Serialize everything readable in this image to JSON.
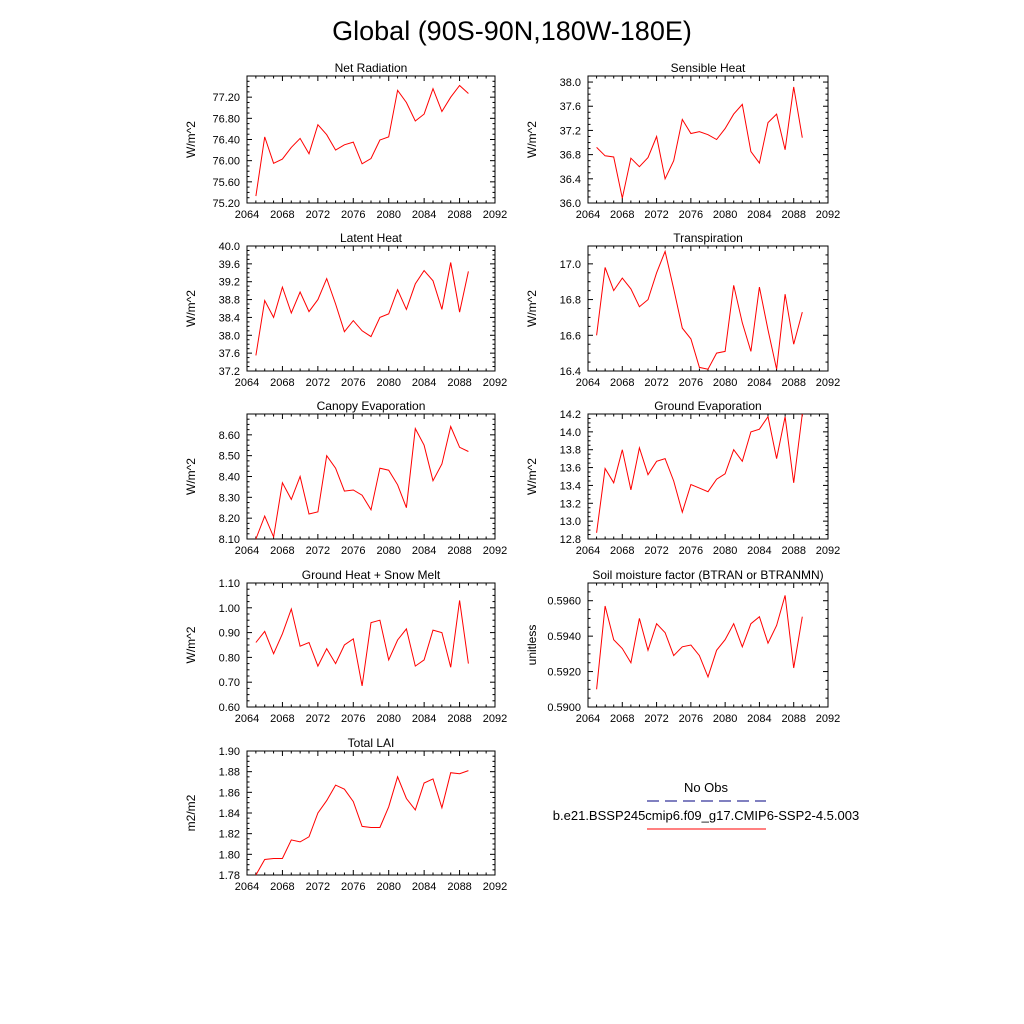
{
  "figure": {
    "title": "Global (90S-90N,180W-180E)",
    "colors": {
      "model_line": "#ff0000",
      "obs_line": "#000080",
      "axes": "#000000"
    }
  },
  "legend": {
    "obs_label": "No Obs",
    "model_label": "b.e21.BSSP245cmip6.f09_g17.CMIP6-SSP2-4.5.003",
    "obs_style": "dashed",
    "model_style": "solid"
  },
  "chart_data": [
    {
      "type": "line",
      "title": "Net Radiation",
      "ylabel": "W/m^2",
      "xlabel": "",
      "xlim": [
        2064,
        2092
      ],
      "ylim": [
        75.2,
        77.6
      ],
      "xticks": [
        "2064",
        "2068",
        "2072",
        "2076",
        "2080",
        "2084",
        "2088",
        "2092"
      ],
      "yticks": [
        "75.20",
        "75.60",
        "76.00",
        "76.40",
        "76.80",
        "77.20"
      ],
      "x": [
        2065,
        2066,
        2067,
        2068,
        2069,
        2070,
        2071,
        2072,
        2073,
        2074,
        2075,
        2076,
        2077,
        2078,
        2079,
        2080,
        2081,
        2082,
        2083,
        2084,
        2085,
        2086,
        2087,
        2088,
        2089
      ],
      "series": [
        {
          "name": "b.e21.BSSP245cmip6.f09_g17.CMIP6-SSP2-4.5.003",
          "values": [
            75.33,
            76.45,
            75.95,
            76.03,
            76.25,
            76.42,
            76.13,
            76.68,
            76.49,
            76.2,
            76.3,
            76.35,
            75.94,
            76.04,
            76.39,
            76.45,
            77.33,
            77.1,
            76.75,
            76.88,
            77.36,
            76.93,
            77.2,
            77.42,
            77.27
          ]
        }
      ]
    },
    {
      "type": "line",
      "title": "Sensible Heat",
      "ylabel": "W/m^2",
      "xlabel": "",
      "xlim": [
        2064,
        2092
      ],
      "ylim": [
        36.0,
        38.1
      ],
      "xticks": [
        "2064",
        "2068",
        "2072",
        "2076",
        "2080",
        "2084",
        "2088",
        "2092"
      ],
      "yticks": [
        "36.0",
        "36.4",
        "36.8",
        "37.2",
        "37.6",
        "38.0"
      ],
      "x": [
        2065,
        2066,
        2067,
        2068,
        2069,
        2070,
        2071,
        2072,
        2073,
        2074,
        2075,
        2076,
        2077,
        2078,
        2079,
        2080,
        2081,
        2082,
        2083,
        2084,
        2085,
        2086,
        2087,
        2088,
        2089
      ],
      "series": [
        {
          "name": "b.e21.BSSP245cmip6.f09_g17.CMIP6-SSP2-4.5.003",
          "values": [
            36.92,
            36.78,
            36.76,
            36.08,
            36.74,
            36.6,
            36.75,
            37.1,
            36.4,
            36.7,
            37.38,
            37.15,
            37.18,
            37.13,
            37.05,
            37.23,
            37.47,
            37.63,
            36.85,
            36.66,
            37.33,
            37.47,
            36.88,
            37.92,
            37.08
          ]
        }
      ]
    },
    {
      "type": "line",
      "title": "Latent Heat",
      "ylabel": "W/m^2",
      "xlabel": "",
      "xlim": [
        2064,
        2092
      ],
      "ylim": [
        37.2,
        40.0
      ],
      "xticks": [
        "2064",
        "2068",
        "2072",
        "2076",
        "2080",
        "2084",
        "2088",
        "2092"
      ],
      "yticks": [
        "37.2",
        "37.6",
        "38.0",
        "38.4",
        "38.8",
        "39.2",
        "39.6",
        "40.0"
      ],
      "x": [
        2065,
        2066,
        2067,
        2068,
        2069,
        2070,
        2071,
        2072,
        2073,
        2074,
        2075,
        2076,
        2077,
        2078,
        2079,
        2080,
        2081,
        2082,
        2083,
        2084,
        2085,
        2086,
        2087,
        2088,
        2089
      ],
      "series": [
        {
          "name": "b.e21.BSSP245cmip6.f09_g17.CMIP6-SSP2-4.5.003",
          "values": [
            37.55,
            38.78,
            38.4,
            39.08,
            38.5,
            38.97,
            38.53,
            38.8,
            39.27,
            38.7,
            38.08,
            38.33,
            38.1,
            37.97,
            38.4,
            38.48,
            39.02,
            38.58,
            39.15,
            39.45,
            39.22,
            38.58,
            39.63,
            38.52,
            39.43
          ]
        }
      ]
    },
    {
      "type": "line",
      "title": "Transpiration",
      "ylabel": "W/m^2",
      "xlabel": "",
      "xlim": [
        2064,
        2092
      ],
      "ylim": [
        16.4,
        17.1
      ],
      "xticks": [
        "2064",
        "2068",
        "2072",
        "2076",
        "2080",
        "2084",
        "2088",
        "2092"
      ],
      "yticks": [
        "16.4",
        "16.6",
        "16.8",
        "17.0"
      ],
      "x": [
        2065,
        2066,
        2067,
        2068,
        2069,
        2070,
        2071,
        2072,
        2073,
        2074,
        2075,
        2076,
        2077,
        2078,
        2079,
        2080,
        2081,
        2082,
        2083,
        2084,
        2085,
        2086,
        2087,
        2088,
        2089
      ],
      "series": [
        {
          "name": "b.e21.BSSP245cmip6.f09_g17.CMIP6-SSP2-4.5.003",
          "values": [
            16.6,
            16.98,
            16.85,
            16.92,
            16.86,
            16.76,
            16.8,
            16.95,
            17.07,
            16.86,
            16.64,
            16.58,
            16.42,
            16.41,
            16.5,
            16.51,
            16.88,
            16.67,
            16.51,
            16.87,
            16.63,
            16.41,
            16.83,
            16.55,
            16.73
          ]
        }
      ]
    },
    {
      "type": "line",
      "title": "Canopy Evaporation",
      "ylabel": "W/m^2",
      "xlabel": "",
      "xlim": [
        2064,
        2092
      ],
      "ylim": [
        8.1,
        8.7
      ],
      "xticks": [
        "2064",
        "2068",
        "2072",
        "2076",
        "2080",
        "2084",
        "2088",
        "2092"
      ],
      "yticks": [
        "8.10",
        "8.20",
        "8.30",
        "8.40",
        "8.50",
        "8.60"
      ],
      "x": [
        2065,
        2066,
        2067,
        2068,
        2069,
        2070,
        2071,
        2072,
        2073,
        2074,
        2075,
        2076,
        2077,
        2078,
        2079,
        2080,
        2081,
        2082,
        2083,
        2084,
        2085,
        2086,
        2087,
        2088,
        2089
      ],
      "series": [
        {
          "name": "b.e21.BSSP245cmip6.f09_g17.CMIP6-SSP2-4.5.003",
          "values": [
            8.1,
            8.21,
            8.11,
            8.37,
            8.29,
            8.4,
            8.22,
            8.23,
            8.5,
            8.44,
            8.33,
            8.335,
            8.31,
            8.24,
            8.44,
            8.43,
            8.36,
            8.25,
            8.63,
            8.55,
            8.38,
            8.46,
            8.64,
            8.54,
            8.52
          ]
        }
      ]
    },
    {
      "type": "line",
      "title": "Ground Evaporation",
      "ylabel": "W/m^2",
      "xlabel": "",
      "xlim": [
        2064,
        2092
      ],
      "ylim": [
        12.8,
        14.2
      ],
      "xticks": [
        "2064",
        "2068",
        "2072",
        "2076",
        "2080",
        "2084",
        "2088",
        "2092"
      ],
      "yticks": [
        "12.8",
        "13.0",
        "13.2",
        "13.4",
        "13.6",
        "13.8",
        "14.0",
        "14.2"
      ],
      "x": [
        2065,
        2066,
        2067,
        2068,
        2069,
        2070,
        2071,
        2072,
        2073,
        2074,
        2075,
        2076,
        2077,
        2078,
        2079,
        2080,
        2081,
        2082,
        2083,
        2084,
        2085,
        2086,
        2087,
        2088,
        2089
      ],
      "series": [
        {
          "name": "b.e21.BSSP245cmip6.f09_g17.CMIP6-SSP2-4.5.003",
          "values": [
            12.87,
            13.59,
            13.43,
            13.8,
            13.35,
            13.82,
            13.52,
            13.67,
            13.7,
            13.45,
            13.1,
            13.41,
            13.37,
            13.33,
            13.47,
            13.53,
            13.8,
            13.67,
            14.0,
            14.03,
            14.17,
            13.7,
            14.17,
            13.43,
            14.2
          ]
        }
      ]
    },
    {
      "type": "line",
      "title": "Ground Heat + Snow Melt",
      "ylabel": "W/m^2",
      "xlabel": "",
      "xlim": [
        2064,
        2092
      ],
      "ylim": [
        0.6,
        1.1
      ],
      "xticks": [
        "2064",
        "2068",
        "2072",
        "2076",
        "2080",
        "2084",
        "2088",
        "2092"
      ],
      "yticks": [
        "0.60",
        "0.70",
        "0.80",
        "0.90",
        "1.00",
        "1.10"
      ],
      "x": [
        2065,
        2066,
        2067,
        2068,
        2069,
        2070,
        2071,
        2072,
        2073,
        2074,
        2075,
        2076,
        2077,
        2078,
        2079,
        2080,
        2081,
        2082,
        2083,
        2084,
        2085,
        2086,
        2087,
        2088,
        2089
      ],
      "series": [
        {
          "name": "b.e21.BSSP245cmip6.f09_g17.CMIP6-SSP2-4.5.003",
          "values": [
            0.86,
            0.905,
            0.815,
            0.895,
            0.995,
            0.845,
            0.86,
            0.765,
            0.835,
            0.775,
            0.85,
            0.875,
            0.685,
            0.94,
            0.95,
            0.79,
            0.87,
            0.915,
            0.765,
            0.79,
            0.91,
            0.9,
            0.76,
            1.03,
            0.775
          ]
        }
      ]
    },
    {
      "type": "line",
      "title": "Soil moisture factor (BTRAN or BTRANMN)",
      "ylabel": "unitless",
      "xlabel": "",
      "xlim": [
        2064,
        2092
      ],
      "ylim": [
        0.59,
        0.597
      ],
      "xticks": [
        "2064",
        "2068",
        "2072",
        "2076",
        "2080",
        "2084",
        "2088",
        "2092"
      ],
      "yticks": [
        "0.5900",
        "0.5920",
        "0.5940",
        "0.5960"
      ],
      "x": [
        2065,
        2066,
        2067,
        2068,
        2069,
        2070,
        2071,
        2072,
        2073,
        2074,
        2075,
        2076,
        2077,
        2078,
        2079,
        2080,
        2081,
        2082,
        2083,
        2084,
        2085,
        2086,
        2087,
        2088,
        2089
      ],
      "series": [
        {
          "name": "b.e21.BSSP245cmip6.f09_g17.CMIP6-SSP2-4.5.003",
          "values": [
            0.591,
            0.5957,
            0.5938,
            0.5933,
            0.5925,
            0.595,
            0.5932,
            0.5947,
            0.5942,
            0.5929,
            0.5934,
            0.5935,
            0.5929,
            0.5917,
            0.5932,
            0.5938,
            0.5947,
            0.5934,
            0.5947,
            0.5951,
            0.5936,
            0.5946,
            0.5963,
            0.5922,
            0.5951
          ]
        }
      ]
    },
    {
      "type": "line",
      "title": "Total LAI",
      "ylabel": "m2/m2",
      "xlabel": "",
      "xlim": [
        2064,
        2092
      ],
      "ylim": [
        1.78,
        1.9
      ],
      "xticks": [
        "2064",
        "2068",
        "2072",
        "2076",
        "2080",
        "2084",
        "2088",
        "2092"
      ],
      "yticks": [
        "1.78",
        "1.80",
        "1.82",
        "1.84",
        "1.86",
        "1.88",
        "1.90"
      ],
      "x": [
        2065,
        2066,
        2067,
        2068,
        2069,
        2070,
        2071,
        2072,
        2073,
        2074,
        2075,
        2076,
        2077,
        2078,
        2079,
        2080,
        2081,
        2082,
        2083,
        2084,
        2085,
        2086,
        2087,
        2088,
        2089
      ],
      "series": [
        {
          "name": "b.e21.BSSP245cmip6.f09_g17.CMIP6-SSP2-4.5.003",
          "values": [
            1.78,
            1.795,
            1.796,
            1.796,
            1.814,
            1.812,
            1.817,
            1.84,
            1.852,
            1.867,
            1.863,
            1.851,
            1.827,
            1.826,
            1.826,
            1.846,
            1.875,
            1.854,
            1.843,
            1.869,
            1.873,
            1.845,
            1.879,
            1.878,
            1.881
          ]
        }
      ]
    }
  ]
}
